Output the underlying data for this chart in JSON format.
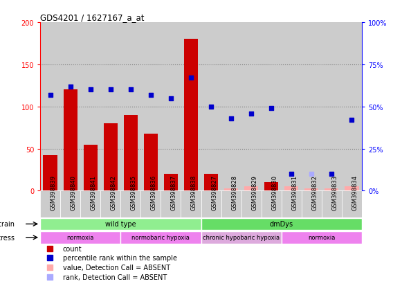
{
  "title": "GDS4201 / 1627167_a_at",
  "samples": [
    "GSM398839",
    "GSM398840",
    "GSM398841",
    "GSM398842",
    "GSM398835",
    "GSM398836",
    "GSM398837",
    "GSM398838",
    "GSM398827",
    "GSM398828",
    "GSM398829",
    "GSM398830",
    "GSM398831",
    "GSM398832",
    "GSM398833",
    "GSM398834"
  ],
  "bar_values": [
    42,
    120,
    55,
    80,
    90,
    68,
    20,
    180,
    20,
    3,
    5,
    10,
    5,
    3,
    3,
    5
  ],
  "bar_absent": [
    false,
    false,
    false,
    false,
    false,
    false,
    false,
    false,
    false,
    true,
    true,
    false,
    true,
    true,
    true,
    true
  ],
  "rank_values": [
    57,
    62,
    60,
    60,
    60,
    57,
    55,
    67,
    50,
    43,
    46,
    49,
    10,
    10,
    10,
    42
  ],
  "rank_absent": [
    false,
    false,
    false,
    false,
    false,
    false,
    false,
    false,
    false,
    false,
    false,
    false,
    false,
    true,
    false,
    false
  ],
  "bar_color_present": "#cc0000",
  "bar_color_absent": "#ffaaaa",
  "rank_color_present": "#0000cc",
  "rank_color_absent": "#aaaaff",
  "ylim_left": [
    0,
    200
  ],
  "ylim_right": [
    0,
    100
  ],
  "yticks_left": [
    0,
    50,
    100,
    150,
    200
  ],
  "ytick_labels_left": [
    "0",
    "50",
    "100",
    "150",
    "200"
  ],
  "yticks_right": [
    0,
    25,
    50,
    75,
    100
  ],
  "ytick_labels_right": [
    "0%",
    "25%",
    "50%",
    "75%",
    "100%"
  ],
  "strain_groups": [
    {
      "label": "wild type",
      "start": 0,
      "end": 8,
      "color": "#90ee90"
    },
    {
      "label": "dmDys",
      "start": 8,
      "end": 16,
      "color": "#66dd66"
    }
  ],
  "stress_groups": [
    {
      "label": "normoxia",
      "start": 0,
      "end": 4,
      "color": "#ee82ee"
    },
    {
      "label": "normobaric hypoxia",
      "start": 4,
      "end": 8,
      "color": "#ee82ee"
    },
    {
      "label": "chronic hypobaric hypoxia",
      "start": 8,
      "end": 12,
      "color": "#ddaadd"
    },
    {
      "label": "normoxia",
      "start": 12,
      "end": 16,
      "color": "#ee82ee"
    }
  ],
  "legend_items": [
    {
      "label": "count",
      "color": "#cc0000"
    },
    {
      "label": "percentile rank within the sample",
      "color": "#0000cc"
    },
    {
      "label": "value, Detection Call = ABSENT",
      "color": "#ffaaaa"
    },
    {
      "label": "rank, Detection Call = ABSENT",
      "color": "#aaaaff"
    }
  ],
  "col_bg": "#cccccc",
  "plot_bg": "#ffffff",
  "label_fontsize": 6,
  "tick_fontsize": 7
}
